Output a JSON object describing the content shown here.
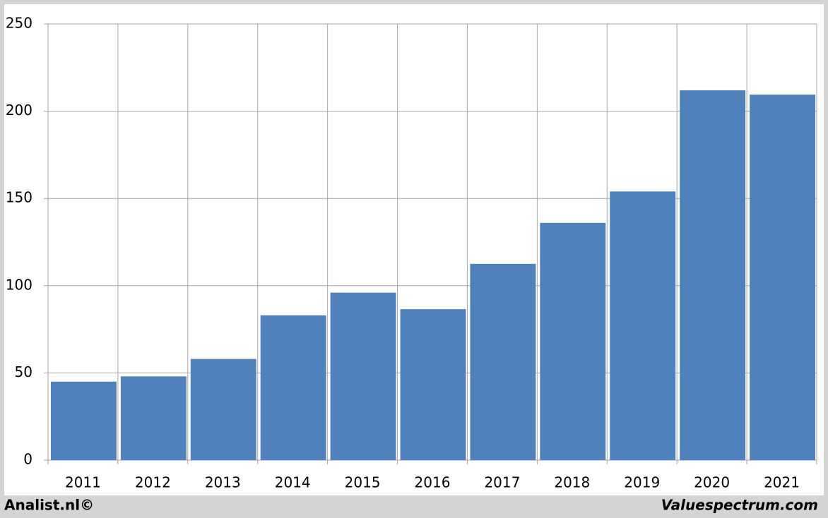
{
  "chart_data": {
    "type": "bar",
    "categories": [
      "2011",
      "2012",
      "2013",
      "2014",
      "2015",
      "2016",
      "2017",
      "2018",
      "2019",
      "2020",
      "2021"
    ],
    "values": [
      45,
      48,
      58,
      83,
      96,
      86.5,
      112.5,
      136,
      154,
      212,
      209.5
    ],
    "color": "#4f81bd",
    "ylim": [
      0,
      250
    ],
    "yticks": [
      0,
      50,
      100,
      150,
      200,
      250
    ],
    "grid": true
  },
  "footer": {
    "left": "Analist.nl©",
    "right": "Valuespectrum.com"
  }
}
